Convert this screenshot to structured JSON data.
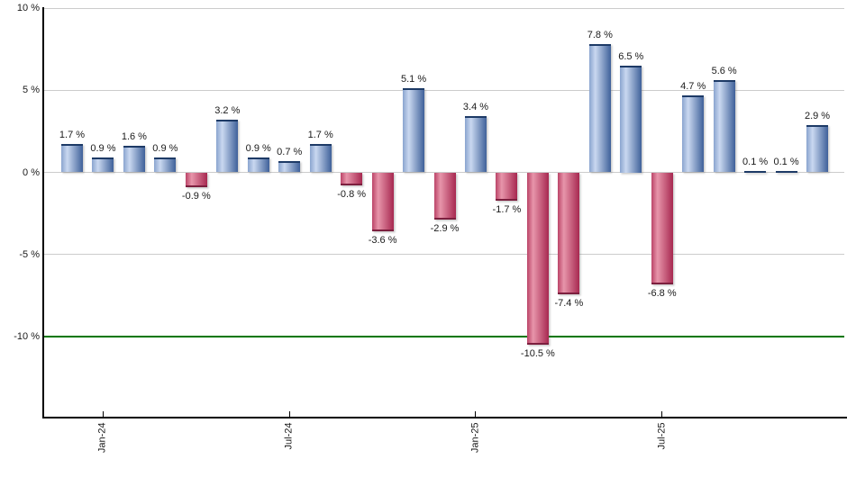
{
  "chart_data": {
    "type": "bar",
    "title": "",
    "xlabel": "",
    "ylabel": "",
    "grid": true,
    "legend": false,
    "ylim": [
      -15,
      10
    ],
    "values": [
      1.7,
      0.9,
      1.6,
      0.9,
      -0.9,
      3.2,
      0.9,
      0.7,
      1.7,
      -0.8,
      -3.6,
      5.1,
      -2.9,
      3.4,
      -1.7,
      -10.5,
      -7.4,
      7.8,
      6.5,
      -6.8,
      4.7,
      5.6,
      0.1,
      0.1,
      2.9
    ],
    "bar_labels": [
      "1.7 %",
      "0.9 %",
      "1.6 %",
      "0.9 %",
      "-0.9 %",
      "3.2 %",
      "0.9 %",
      "0.7 %",
      "1.7 %",
      "-0.8 %",
      "-3.6 %",
      "5.1 %",
      "-2.9 %",
      "3.4 %",
      "-1.7 %",
      "-10.5 %",
      "-7.4 %",
      "7.8 %",
      "6.5 %",
      "-6.8 %",
      "4.7 %",
      "5.6 %",
      "0.1 %",
      "0.1 %",
      "2.9 %"
    ],
    "x_tick_labels": [
      {
        "label": "Jan-24",
        "bar_index": 1
      },
      {
        "label": "Jul-24",
        "bar_index": 7
      },
      {
        "label": "Jan-25",
        "bar_index": 13
      },
      {
        "label": "Jul-25",
        "bar_index": 19
      }
    ],
    "y_tick_labels": [
      {
        "label": "10 %",
        "value": 10
      },
      {
        "label": "5 %",
        "value": 5
      },
      {
        "label": "0 %",
        "value": 0
      },
      {
        "label": "-5 %",
        "value": -5
      },
      {
        "label": "-10 %",
        "value": -10
      }
    ],
    "threshold_line": {
      "value": -10,
      "color": "#007700"
    },
    "colors": {
      "positive_bar": {
        "left": "#8aa4cf",
        "highlight": "#c9d8f0",
        "right": "#3f619a",
        "cap": "#1d3a66"
      },
      "negative_bar": {
        "left": "#bb4468",
        "highlight": "#e795aa",
        "right": "#a72850",
        "cap": "#7c1f3e"
      },
      "gridline": "#cccccc",
      "axis": "#000000",
      "label_text": "#1a1a1a",
      "background": "#ffffff"
    }
  }
}
